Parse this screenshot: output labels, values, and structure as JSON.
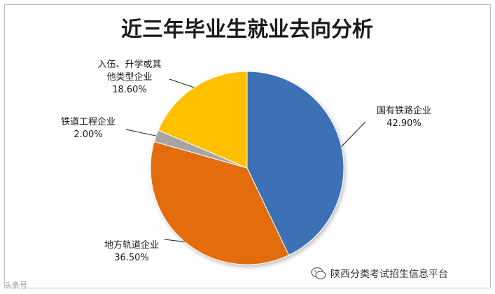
{
  "chart_data": {
    "type": "pie",
    "title": "近三年毕业生就业去向分析",
    "slices": [
      {
        "label": "国有铁路企业",
        "value": 42.9,
        "display": "42.90%",
        "color": "#3E6FB5"
      },
      {
        "label": "地方轨道企业",
        "value": 36.5,
        "display": "36.50%",
        "color": "#E36C0E"
      },
      {
        "label": "铁道工程企业",
        "value": 2.0,
        "display": "2.00%",
        "color": "#A5A5A5"
      },
      {
        "label": "入伍、升学或其他类型企业",
        "label_lines": [
          "入伍、升学或其",
          "他类型企业"
        ],
        "value": 18.6,
        "display": "18.60%",
        "color": "#FFC000"
      }
    ],
    "start": "12 o'clock",
    "direction": "clockwise",
    "legend": "none"
  },
  "watermarks": {
    "left": "头条号",
    "right": "陕西分类考试招生信息平台"
  }
}
